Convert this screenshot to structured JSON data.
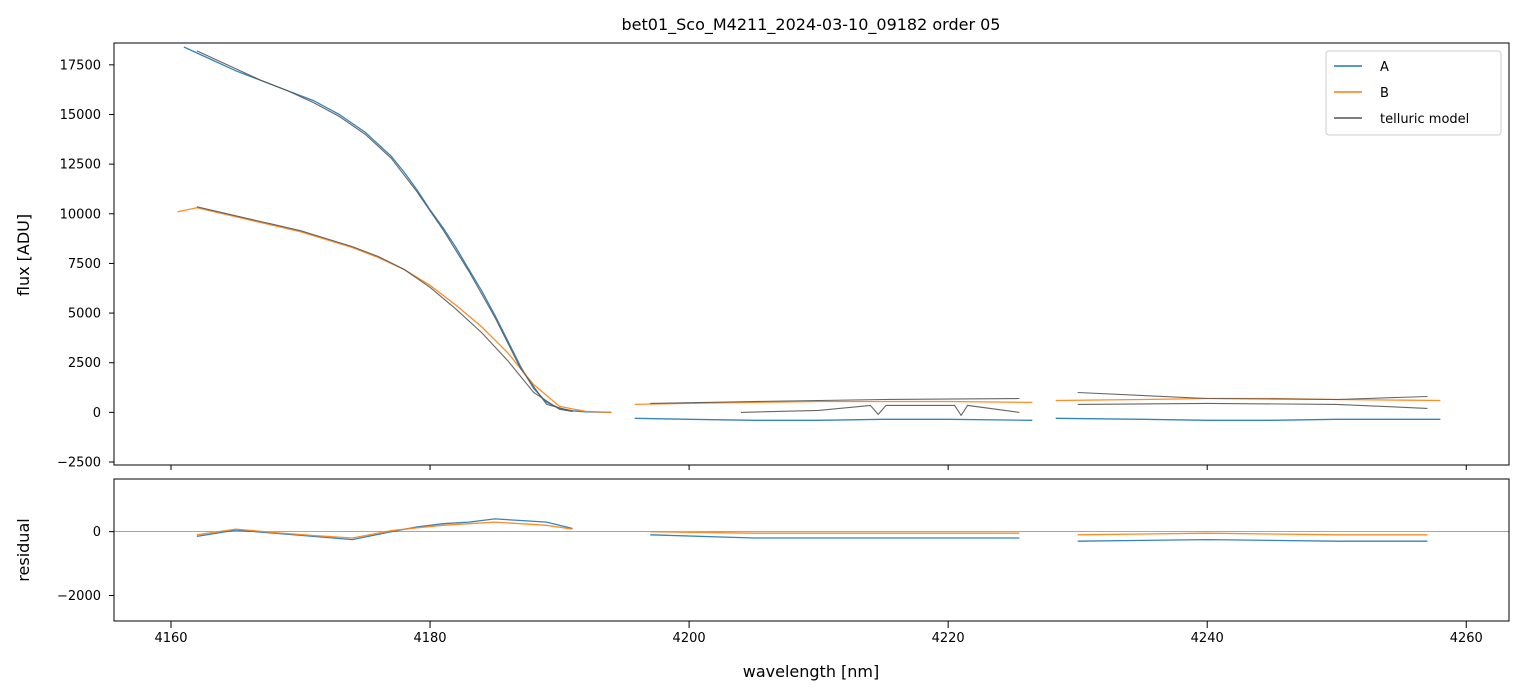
{
  "chart_data": [
    {
      "type": "line",
      "panel": "spectrum",
      "title": "bet01_Sco_M4211_2024-03-10_09182  order 05",
      "xlabel": "",
      "ylabel": "flux [ADU]",
      "xlim": [
        4155.6,
        4263.3
      ],
      "ylim": [
        -2650,
        18600
      ],
      "yticks": [
        -2500,
        0,
        2500,
        5000,
        7500,
        10000,
        12500,
        15000,
        17500
      ],
      "xticks": [
        4160,
        4180,
        4200,
        4220,
        4240,
        4260
      ],
      "grid": false,
      "legend": "top-right",
      "series": [
        {
          "name": "A",
          "color": "#1f77b4",
          "segments": [
            {
              "x": [
                4161.0,
                4163,
                4165,
                4167,
                4169,
                4171,
                4173,
                4175,
                4177,
                4178,
                4179,
                4180,
                4181,
                4182,
                4183,
                4184,
                4185,
                4186,
                4187,
                4188,
                4189,
                4190,
                4191,
                4192,
                4194
              ],
              "y": [
                18400,
                17800,
                17200,
                16700,
                16200,
                15700,
                15000,
                14100,
                12900,
                12100,
                11200,
                10200,
                9300,
                8300,
                7200,
                6100,
                4900,
                3600,
                2300,
                1200,
                500,
                200,
                80,
                30,
                0
              ]
            },
            {
              "x": [
                4195.8,
                4200,
                4205,
                4210,
                4215,
                4220,
                4226.5
              ],
              "y": [
                -300,
                -350,
                -400,
                -400,
                -350,
                -350,
                -400
              ]
            },
            {
              "x": [
                4228.3,
                4235,
                4240,
                4245,
                4250,
                4258
              ],
              "y": [
                -300,
                -350,
                -400,
                -400,
                -350,
                -350
              ]
            }
          ]
        },
        {
          "name": "B",
          "color": "#ff7f0e",
          "segments": [
            {
              "x": [
                4160.5,
                4162,
                4164,
                4166,
                4168,
                4170,
                4172,
                4174,
                4176,
                4178,
                4180,
                4182,
                4184,
                4186,
                4188,
                4190,
                4192,
                4194
              ],
              "y": [
                10100,
                10300,
                10000,
                9700,
                9400,
                9100,
                8700,
                8300,
                7800,
                7200,
                6400,
                5400,
                4300,
                3000,
                1400,
                300,
                50,
                0
              ]
            },
            {
              "x": [
                4195.8,
                4200,
                4205,
                4210,
                4215,
                4220,
                4226.5
              ],
              "y": [
                400,
                450,
                500,
                550,
                550,
                550,
                500
              ]
            },
            {
              "x": [
                4228.3,
                4235,
                4240,
                4245,
                4250,
                4258
              ],
              "y": [
                600,
                650,
                700,
                700,
                650,
                600
              ]
            }
          ]
        },
        {
          "name": "telluric model",
          "color": "#555555",
          "segments": [
            {
              "x": [
                4162,
                4165,
                4167,
                4169,
                4171,
                4173,
                4175,
                4177,
                4179,
                4181,
                4183,
                4185,
                4187,
                4189,
                4191
              ],
              "y": [
                18200,
                17300,
                16700,
                16200,
                15600,
                14900,
                14000,
                12800,
                11100,
                9200,
                7100,
                4800,
                2200,
                400,
                50
              ]
            },
            {
              "x": [
                4162,
                4164,
                4166,
                4168,
                4170,
                4172,
                4174,
                4176,
                4178,
                4180,
                4182,
                4184,
                4186,
                4188,
                4190,
                4191
              ],
              "y": [
                10350,
                10050,
                9750,
                9450,
                9150,
                8750,
                8350,
                7850,
                7200,
                6300,
                5200,
                4000,
                2600,
                1000,
                150,
                50
              ]
            },
            {
              "x": [
                4197,
                4205,
                4215,
                4225.5
              ],
              "y": [
                450,
                550,
                650,
                700
              ]
            },
            {
              "x": [
                4204,
                4210,
                4214,
                4214.6,
                4215.2,
                4218,
                4220.5,
                4221,
                4221.5,
                4225.5
              ],
              "y": [
                0,
                100,
                350,
                -100,
                350,
                350,
                350,
                -150,
                350,
                0
              ]
            },
            {
              "x": [
                4230,
                4240,
                4250,
                4257
              ],
              "y": [
                400,
                450,
                400,
                200
              ]
            },
            {
              "x": [
                4230,
                4240,
                4250,
                4257
              ],
              "y": [
                1000,
                700,
                650,
                800
              ]
            }
          ]
        }
      ]
    },
    {
      "type": "line",
      "panel": "residual",
      "title": "",
      "xlabel": "wavelength [nm]",
      "ylabel": "residual",
      "xlim": [
        4155.6,
        4263.3
      ],
      "ylim": [
        -2800,
        1650
      ],
      "yticks": [
        -2000,
        0
      ],
      "xticks": [
        4160,
        4180,
        4200,
        4220,
        4240,
        4260
      ],
      "grid": false,
      "reference_line": 0,
      "series": [
        {
          "name": "A",
          "color": "#1f77b4",
          "segments": [
            {
              "x": [
                4162,
                4165,
                4168,
                4171,
                4174,
                4177,
                4179,
                4181,
                4183,
                4185,
                4187,
                4189,
                4191
              ],
              "y": [
                -150,
                50,
                -50,
                -150,
                -250,
                0,
                150,
                250,
                300,
                400,
                350,
                300,
                100
              ]
            },
            {
              "x": [
                4197,
                4205,
                4215,
                4225.5
              ],
              "y": [
                -100,
                -200,
                -200,
                -200
              ]
            },
            {
              "x": [
                4230,
                4240,
                4250,
                4257
              ],
              "y": [
                -300,
                -250,
                -300,
                -300
              ]
            }
          ]
        },
        {
          "name": "B",
          "color": "#ff7f0e",
          "segments": [
            {
              "x": [
                4162,
                4165,
                4168,
                4171,
                4174,
                4177,
                4179,
                4181,
                4183,
                4185,
                4187,
                4189,
                4191
              ],
              "y": [
                -100,
                80,
                -30,
                -120,
                -200,
                30,
                120,
                200,
                250,
                300,
                250,
                200,
                80
              ]
            },
            {
              "x": [
                4197,
                4205,
                4215,
                4225.5
              ],
              "y": [
                0,
                -50,
                -50,
                -50
              ]
            },
            {
              "x": [
                4230,
                4240,
                4250,
                4257
              ],
              "y": [
                -100,
                -50,
                -100,
                -100
              ]
            }
          ]
        }
      ]
    }
  ]
}
